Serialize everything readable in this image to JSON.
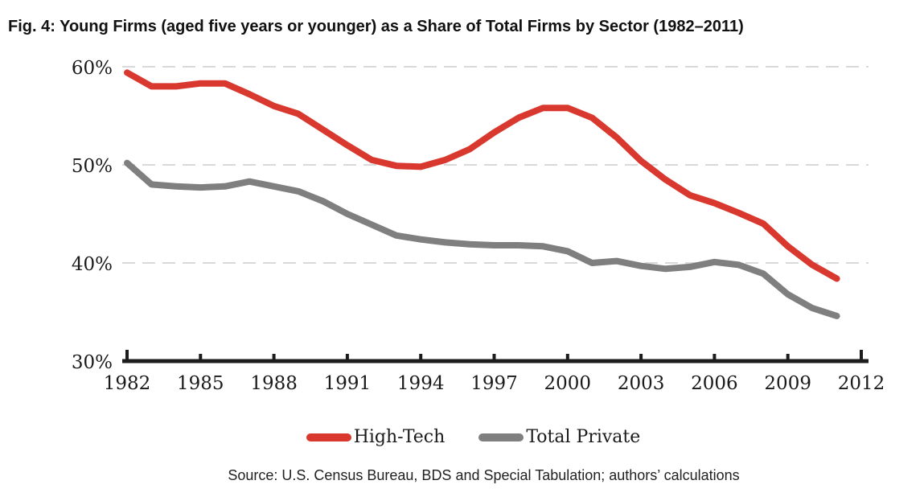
{
  "figure": {
    "title": "Fig. 4: Young Firms (aged five years or younger) as a Share of Total Firms by Sector (1982–2011)",
    "source": "Source: U.S. Census Bureau, BDS and Special Tabulation; authors’ calculations"
  },
  "chart_data": {
    "type": "line",
    "title": "Fig. 4: Young Firms (aged five years or younger) as a Share of Total Firms by Sector (1982–2011)",
    "x": [
      1982,
      1983,
      1984,
      1985,
      1986,
      1987,
      1988,
      1989,
      1990,
      1991,
      1992,
      1993,
      1994,
      1995,
      1996,
      1997,
      1998,
      1999,
      2000,
      2001,
      2002,
      2003,
      2004,
      2005,
      2006,
      2007,
      2008,
      2009,
      2010,
      2011
    ],
    "series": [
      {
        "name": "High-Tech",
        "color": "#d9382f",
        "values": [
          59.4,
          58.0,
          58.0,
          58.3,
          58.3,
          57.2,
          56.0,
          55.2,
          53.6,
          52.0,
          50.5,
          49.9,
          49.8,
          50.5,
          51.6,
          53.3,
          54.8,
          55.8,
          55.8,
          54.8,
          52.8,
          50.4,
          48.5,
          46.9,
          46.1,
          45.1,
          44.0,
          41.7,
          39.8,
          38.4
        ]
      },
      {
        "name": "Total Private",
        "color": "#7f7f7f",
        "values": [
          50.2,
          48.0,
          47.8,
          47.7,
          47.8,
          48.3,
          47.8,
          47.3,
          46.3,
          45.0,
          43.9,
          42.8,
          42.4,
          42.1,
          41.9,
          41.8,
          41.8,
          41.7,
          41.2,
          40.0,
          40.2,
          39.7,
          39.4,
          39.6,
          40.1,
          39.8,
          38.9,
          36.8,
          35.4,
          34.6
        ]
      }
    ],
    "xlabel": "",
    "ylabel": "",
    "xlim": [
      1982,
      2012
    ],
    "ylim": [
      30,
      60
    ],
    "x_ticks": [
      1982,
      1985,
      1988,
      1991,
      1994,
      1997,
      2000,
      2003,
      2006,
      2009,
      2012
    ],
    "y_ticks": [
      30,
      40,
      50,
      60
    ],
    "y_tick_suffix": "%",
    "grid": "horizontal dashed gridlines at 40%, 50%, 60%; none at 30% (axis line)",
    "gridline_color": "#d9d9d9",
    "axis_color": "#1c1c1c",
    "legend_position": "bottom-center"
  }
}
